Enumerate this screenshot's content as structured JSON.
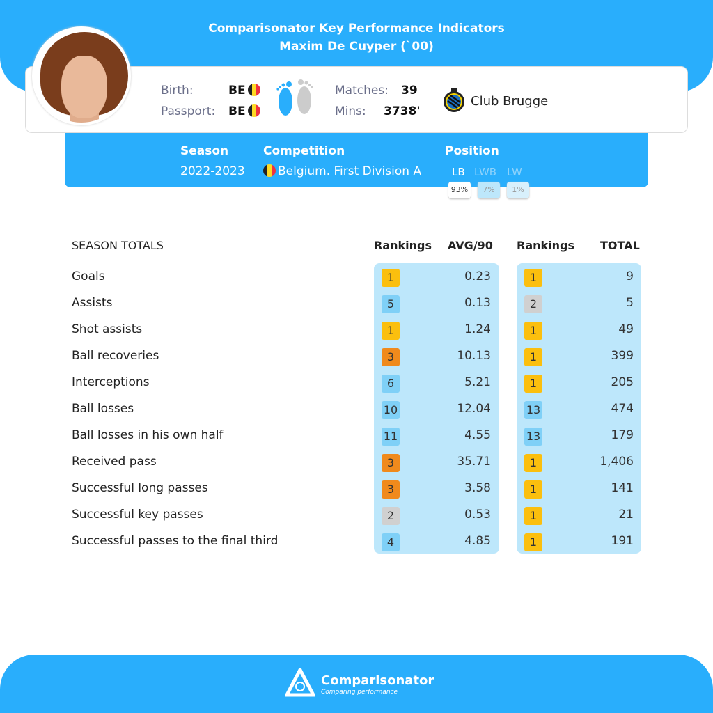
{
  "header": {
    "title": "Comparisonator Key Performance Indicators",
    "player": "Maxim De Cuyper (`00)"
  },
  "profile": {
    "birth_label": "Birth:",
    "birth_value": "BE",
    "passport_label": "Passport:",
    "passport_value": "BE",
    "matches_label": "Matches:",
    "matches_value": "39",
    "mins_label": "Mins:",
    "mins_value": "3738'",
    "club": "Club Brugge"
  },
  "season": {
    "season_label": "Season",
    "season_value": "2022-2023",
    "competition_label": "Competition",
    "competition_value": "Belgium. First Division A",
    "position_label": "Position",
    "positions": [
      {
        "name": "LB",
        "pct": "93%"
      },
      {
        "name": "LWB",
        "pct": "7%"
      },
      {
        "name": "LW",
        "pct": "1%"
      }
    ]
  },
  "table": {
    "title": "SEASON TOTALS",
    "rank_header": "Rankings",
    "avg_header": "AVG/90",
    "rank_header2": "Rankings",
    "total_header": "TOTAL",
    "rows": [
      {
        "label": "Goals",
        "avg_rank": "1",
        "avg": "0.23",
        "tot_rank": "1",
        "total": "9"
      },
      {
        "label": "Assists",
        "avg_rank": "5",
        "avg": "0.13",
        "tot_rank": "2",
        "total": "5"
      },
      {
        "label": "Shot assists",
        "avg_rank": "1",
        "avg": "1.24",
        "tot_rank": "1",
        "total": "49"
      },
      {
        "label": "Ball recoveries",
        "avg_rank": "3",
        "avg": "10.13",
        "tot_rank": "1",
        "total": "399"
      },
      {
        "label": "Interceptions",
        "avg_rank": "6",
        "avg": "5.21",
        "tot_rank": "1",
        "total": "205"
      },
      {
        "label": "Ball losses",
        "avg_rank": "10",
        "avg": "12.04",
        "tot_rank": "13",
        "total": "474"
      },
      {
        "label": "Ball losses in his own half",
        "avg_rank": "11",
        "avg": "4.55",
        "tot_rank": "13",
        "total": "179"
      },
      {
        "label": "Received pass",
        "avg_rank": "3",
        "avg": "35.71",
        "tot_rank": "1",
        "total": "1,406"
      },
      {
        "label": "Successful long passes",
        "avg_rank": "3",
        "avg": "3.58",
        "tot_rank": "1",
        "total": "141"
      },
      {
        "label": "Successful key passes",
        "avg_rank": "2",
        "avg": "0.53",
        "tot_rank": "1",
        "total": "21"
      },
      {
        "label": "Successful passes to the final third",
        "avg_rank": "4",
        "avg": "4.85",
        "tot_rank": "1",
        "total": "191"
      }
    ]
  },
  "colors": {
    "accent": "#29aefc",
    "gold": "#fbbf0e",
    "silver": "#d0d0d0",
    "bronze": "#f08a1c",
    "other": "#7fd0f7"
  },
  "footer": {
    "brand": "Comparisonator",
    "tagline": "Comparing performance"
  }
}
